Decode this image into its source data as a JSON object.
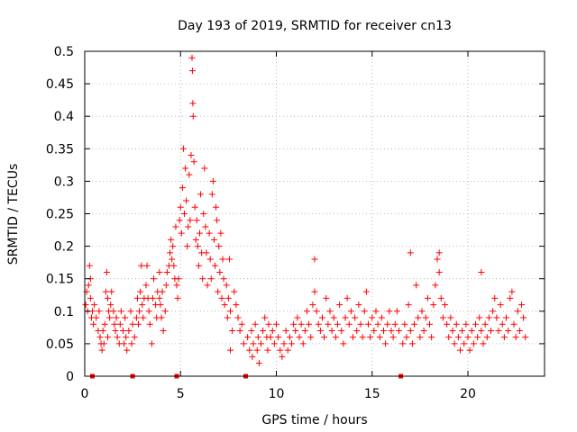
{
  "chart_data": {
    "type": "scatter",
    "title": "Day 193 of 2019, SRMTID for receiver cn13",
    "xlabel": "GPS time / hours",
    "ylabel": "SRMTID / TECUs",
    "xlim": [
      0,
      24
    ],
    "ylim": [
      0,
      0.5
    ],
    "x_ticks": [
      0,
      5,
      10,
      15,
      20
    ],
    "x_tick_labels": [
      "0",
      "5",
      "10",
      "15",
      "20"
    ],
    "y_ticks": [
      0,
      0.05,
      0.1,
      0.15,
      0.2,
      0.25,
      0.3,
      0.35,
      0.4,
      0.45,
      0.5
    ],
    "y_tick_labels": [
      "0",
      "0.05",
      "0.1",
      "0.15",
      "0.2",
      "0.25",
      "0.3",
      "0.35",
      "0.4",
      "0.45",
      "0.5"
    ],
    "grid": true,
    "marker": "+",
    "color": "#ff0000",
    "zero_markers_x": [
      0.4,
      2.5,
      4.8,
      8.4,
      16.5
    ],
    "series": [
      {
        "name": "SRMTID",
        "points": [
          [
            0.05,
            0.11
          ],
          [
            0.1,
            0.13
          ],
          [
            0.15,
            0.1
          ],
          [
            0.2,
            0.14
          ],
          [
            0.25,
            0.17
          ],
          [
            0.3,
            0.12
          ],
          [
            0.35,
            0.09
          ],
          [
            0.4,
            0.1
          ],
          [
            0.45,
            0.08
          ],
          [
            0.5,
            0.11
          ],
          [
            0.6,
            0.09
          ],
          [
            0.7,
            0.07
          ],
          [
            0.75,
            0.1
          ],
          [
            0.8,
            0.06
          ],
          [
            0.85,
            0.05
          ],
          [
            0.9,
            0.04
          ],
          [
            0.95,
            0.07
          ],
          [
            1.0,
            0.05
          ],
          [
            1.05,
            0.08
          ],
          [
            1.1,
            0.13
          ],
          [
            1.15,
            0.16
          ],
          [
            1.2,
            0.12
          ],
          [
            1.25,
            0.1
          ],
          [
            1.3,
            0.09
          ],
          [
            1.35,
            0.11
          ],
          [
            1.4,
            0.13
          ],
          [
            1.5,
            0.1
          ],
          [
            1.55,
            0.08
          ],
          [
            1.6,
            0.07
          ],
          [
            1.65,
            0.09
          ],
          [
            1.7,
            0.06
          ],
          [
            1.8,
            0.05
          ],
          [
            1.85,
            0.08
          ],
          [
            1.9,
            0.1
          ],
          [
            2.0,
            0.07
          ],
          [
            2.05,
            0.05
          ],
          [
            2.1,
            0.09
          ],
          [
            2.15,
            0.06
          ],
          [
            2.2,
            0.04
          ],
          [
            2.3,
            0.07
          ],
          [
            2.4,
            0.1
          ],
          [
            2.45,
            0.05
          ],
          [
            2.5,
            0.08
          ],
          [
            2.6,
            0.06
          ],
          [
            2.7,
            0.09
          ],
          [
            2.75,
            0.12
          ],
          [
            2.8,
            0.08
          ],
          [
            2.85,
            0.1
          ],
          [
            2.9,
            0.13
          ],
          [
            2.95,
            0.17
          ],
          [
            3.0,
            0.11
          ],
          [
            3.05,
            0.09
          ],
          [
            3.1,
            0.12
          ],
          [
            3.2,
            0.14
          ],
          [
            3.25,
            0.17
          ],
          [
            3.3,
            0.12
          ],
          [
            3.35,
            0.1
          ],
          [
            3.4,
            0.08
          ],
          [
            3.5,
            0.05
          ],
          [
            3.55,
            0.12
          ],
          [
            3.6,
            0.15
          ],
          [
            3.7,
            0.11
          ],
          [
            3.75,
            0.09
          ],
          [
            3.8,
            0.13
          ],
          [
            3.9,
            0.16
          ],
          [
            3.95,
            0.11
          ],
          [
            4.0,
            0.09
          ],
          [
            4.05,
            0.13
          ],
          [
            4.1,
            0.07
          ],
          [
            4.2,
            0.1
          ],
          [
            4.25,
            0.14
          ],
          [
            4.3,
            0.16
          ],
          [
            4.4,
            0.17
          ],
          [
            4.45,
            0.19
          ],
          [
            4.5,
            0.21
          ],
          [
            4.55,
            0.18
          ],
          [
            4.6,
            0.2
          ],
          [
            4.65,
            0.17
          ],
          [
            4.7,
            0.15
          ],
          [
            4.75,
            0.23
          ],
          [
            4.8,
            0.14
          ],
          [
            4.85,
            0.12
          ],
          [
            4.9,
            0.15
          ],
          [
            4.95,
            0.24
          ],
          [
            5.0,
            0.26
          ],
          [
            5.05,
            0.22
          ],
          [
            5.1,
            0.29
          ],
          [
            5.15,
            0.35
          ],
          [
            5.2,
            0.25
          ],
          [
            5.25,
            0.32
          ],
          [
            5.3,
            0.27
          ],
          [
            5.35,
            0.2
          ],
          [
            5.4,
            0.23
          ],
          [
            5.45,
            0.31
          ],
          [
            5.5,
            0.24
          ],
          [
            5.55,
            0.34
          ],
          [
            5.6,
            0.49
          ],
          [
            5.62,
            0.47
          ],
          [
            5.64,
            0.42
          ],
          [
            5.66,
            0.4
          ],
          [
            5.7,
            0.33
          ],
          [
            5.75,
            0.26
          ],
          [
            5.8,
            0.21
          ],
          [
            5.85,
            0.24
          ],
          [
            5.9,
            0.2
          ],
          [
            5.95,
            0.17
          ],
          [
            6.0,
            0.22
          ],
          [
            6.05,
            0.28
          ],
          [
            6.1,
            0.19
          ],
          [
            6.15,
            0.15
          ],
          [
            6.2,
            0.25
          ],
          [
            6.25,
            0.32
          ],
          [
            6.3,
            0.23
          ],
          [
            6.35,
            0.19
          ],
          [
            6.4,
            0.14
          ],
          [
            6.5,
            0.22
          ],
          [
            6.55,
            0.18
          ],
          [
            6.6,
            0.15
          ],
          [
            6.65,
            0.28
          ],
          [
            6.7,
            0.3
          ],
          [
            6.75,
            0.21
          ],
          [
            6.8,
            0.17
          ],
          [
            6.85,
            0.26
          ],
          [
            6.9,
            0.24
          ],
          [
            6.95,
            0.13
          ],
          [
            7.0,
            0.2
          ],
          [
            7.05,
            0.16
          ],
          [
            7.1,
            0.22
          ],
          [
            7.15,
            0.12
          ],
          [
            7.2,
            0.18
          ],
          [
            7.25,
            0.15
          ],
          [
            7.3,
            0.11
          ],
          [
            7.4,
            0.14
          ],
          [
            7.45,
            0.09
          ],
          [
            7.5,
            0.12
          ],
          [
            7.55,
            0.18
          ],
          [
            7.6,
            0.1
          ],
          [
            7.7,
            0.07
          ],
          [
            7.8,
            0.13
          ],
          [
            7.9,
            0.11
          ],
          [
            8.0,
            0.09
          ],
          [
            8.1,
            0.07
          ],
          [
            8.2,
            0.08
          ],
          [
            8.3,
            0.05
          ],
          [
            8.5,
            0.06
          ],
          [
            8.6,
            0.04
          ],
          [
            8.7,
            0.07
          ],
          [
            8.75,
            0.03
          ],
          [
            8.8,
            0.05
          ],
          [
            8.9,
            0.08
          ],
          [
            9.0,
            0.04
          ],
          [
            9.05,
            0.06
          ],
          [
            9.1,
            0.02
          ],
          [
            9.2,
            0.05
          ],
          [
            9.3,
            0.07
          ],
          [
            9.4,
            0.09
          ],
          [
            9.5,
            0.06
          ],
          [
            9.55,
            0.04
          ],
          [
            9.6,
            0.08
          ],
          [
            9.7,
            0.06
          ],
          [
            9.8,
            0.07
          ],
          [
            9.9,
            0.05
          ],
          [
            10.0,
            0.08
          ],
          [
            10.1,
            0.06
          ],
          [
            10.2,
            0.04
          ],
          [
            10.3,
            0.03
          ],
          [
            10.4,
            0.05
          ],
          [
            10.5,
            0.07
          ],
          [
            10.6,
            0.04
          ],
          [
            10.7,
            0.06
          ],
          [
            10.8,
            0.05
          ],
          [
            10.9,
            0.08
          ],
          [
            11.0,
            0.07
          ],
          [
            11.1,
            0.09
          ],
          [
            11.2,
            0.06
          ],
          [
            11.3,
            0.08
          ],
          [
            11.4,
            0.05
          ],
          [
            11.5,
            0.07
          ],
          [
            11.6,
            0.1
          ],
          [
            11.7,
            0.08
          ],
          [
            11.8,
            0.06
          ],
          [
            11.9,
            0.11
          ],
          [
            12.0,
            0.13
          ],
          [
            12.1,
            0.1
          ],
          [
            12.2,
            0.08
          ],
          [
            12.3,
            0.07
          ],
          [
            12.4,
            0.09
          ],
          [
            12.5,
            0.06
          ],
          [
            12.6,
            0.12
          ],
          [
            12.7,
            0.08
          ],
          [
            12.8,
            0.1
          ],
          [
            12.9,
            0.07
          ],
          [
            13.0,
            0.09
          ],
          [
            13.1,
            0.06
          ],
          [
            13.2,
            0.08
          ],
          [
            13.3,
            0.11
          ],
          [
            13.4,
            0.07
          ],
          [
            13.5,
            0.05
          ],
          [
            13.6,
            0.09
          ],
          [
            13.7,
            0.12
          ],
          [
            13.8,
            0.08
          ],
          [
            13.9,
            0.1
          ],
          [
            14.0,
            0.06
          ],
          [
            14.1,
            0.09
          ],
          [
            14.2,
            0.07
          ],
          [
            14.3,
            0.11
          ],
          [
            14.4,
            0.08
          ],
          [
            14.5,
            0.06
          ],
          [
            14.6,
            0.1
          ],
          [
            14.7,
            0.13
          ],
          [
            14.8,
            0.08
          ],
          [
            14.9,
            0.06
          ],
          [
            15.0,
            0.09
          ],
          [
            15.1,
            0.07
          ],
          [
            15.2,
            0.1
          ],
          [
            15.3,
            0.08
          ],
          [
            15.4,
            0.06
          ],
          [
            15.5,
            0.09
          ],
          [
            15.6,
            0.07
          ],
          [
            15.7,
            0.05
          ],
          [
            15.8,
            0.08
          ],
          [
            15.9,
            0.1
          ],
          [
            16.0,
            0.07
          ],
          [
            16.1,
            0.06
          ],
          [
            16.2,
            0.08
          ],
          [
            16.3,
            0.1
          ],
          [
            16.4,
            0.07
          ],
          [
            16.6,
            0.05
          ],
          [
            16.7,
            0.08
          ],
          [
            16.8,
            0.06
          ],
          [
            16.9,
            0.11
          ],
          [
            17.0,
            0.07
          ],
          [
            17.1,
            0.05
          ],
          [
            17.2,
            0.08
          ],
          [
            17.3,
            0.14
          ],
          [
            17.4,
            0.09
          ],
          [
            17.5,
            0.06
          ],
          [
            17.6,
            0.1
          ],
          [
            17.7,
            0.07
          ],
          [
            17.8,
            0.09
          ],
          [
            17.9,
            0.12
          ],
          [
            18.0,
            0.08
          ],
          [
            18.1,
            0.06
          ],
          [
            18.2,
            0.11
          ],
          [
            18.3,
            0.14
          ],
          [
            18.4,
            0.18
          ],
          [
            18.5,
            0.16
          ],
          [
            18.6,
            0.12
          ],
          [
            18.7,
            0.09
          ],
          [
            18.8,
            0.11
          ],
          [
            18.9,
            0.08
          ],
          [
            19.0,
            0.06
          ],
          [
            19.1,
            0.09
          ],
          [
            19.2,
            0.07
          ],
          [
            19.3,
            0.05
          ],
          [
            19.4,
            0.08
          ],
          [
            19.5,
            0.06
          ],
          [
            19.6,
            0.04
          ],
          [
            19.7,
            0.07
          ],
          [
            19.8,
            0.05
          ],
          [
            19.9,
            0.08
          ],
          [
            20.0,
            0.06
          ],
          [
            20.1,
            0.04
          ],
          [
            20.2,
            0.07
          ],
          [
            20.3,
            0.05
          ],
          [
            20.4,
            0.08
          ],
          [
            20.5,
            0.06
          ],
          [
            20.6,
            0.09
          ],
          [
            20.7,
            0.07
          ],
          [
            20.8,
            0.05
          ],
          [
            20.9,
            0.08
          ],
          [
            21.0,
            0.06
          ],
          [
            21.1,
            0.09
          ],
          [
            21.2,
            0.07
          ],
          [
            21.3,
            0.1
          ],
          [
            21.4,
            0.12
          ],
          [
            21.5,
            0.09
          ],
          [
            21.6,
            0.07
          ],
          [
            21.7,
            0.11
          ],
          [
            21.8,
            0.08
          ],
          [
            21.9,
            0.06
          ],
          [
            22.0,
            0.09
          ],
          [
            22.1,
            0.07
          ],
          [
            22.2,
            0.12
          ],
          [
            22.3,
            0.13
          ],
          [
            22.4,
            0.08
          ],
          [
            22.5,
            0.06
          ],
          [
            22.6,
            0.1
          ],
          [
            22.7,
            0.07
          ],
          [
            22.8,
            0.11
          ],
          [
            22.9,
            0.09
          ],
          [
            23.0,
            0.06
          ],
          [
            20.7,
            0.16
          ],
          [
            12.0,
            0.18
          ],
          [
            17.0,
            0.19
          ],
          [
            18.5,
            0.19
          ],
          [
            3.9,
            0.12
          ],
          [
            1.2,
            0.06
          ],
          [
            0.3,
            0.15
          ],
          [
            7.6,
            0.04
          ]
        ]
      }
    ]
  }
}
